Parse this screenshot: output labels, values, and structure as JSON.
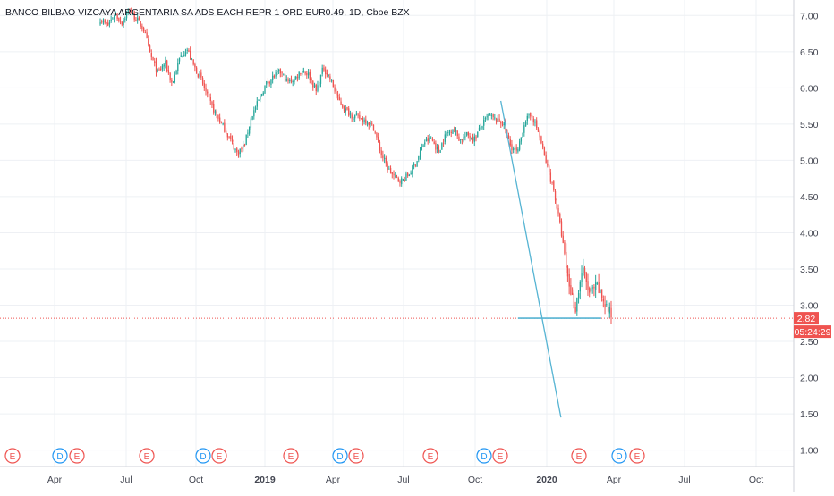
{
  "chart_data": {
    "type": "candlestick",
    "title": "BANCO BILBAO VIZCAYA ARGENTARIA SA ADS EACH REPR 1 ORD EUR0.49, 1D, Cboe BZX",
    "ylim": [
      0.75,
      7.2
    ],
    "y_ticks": [
      "7.00",
      "6.50",
      "6.00",
      "5.50",
      "5.00",
      "4.50",
      "4.00",
      "3.50",
      "3.00",
      "2.50",
      "2.00",
      "1.50",
      "1.00"
    ],
    "x_tick_labels": [
      "Apr",
      "Jul",
      "Oct",
      "2019",
      "Apr",
      "Jul",
      "Oct",
      "2020",
      "Apr",
      "Jul",
      "Oct"
    ],
    "grid": true,
    "colors": {
      "up": "#26a69a",
      "down": "#ef5350",
      "trendline": "#56b4d3",
      "price_line": "#ef5350"
    },
    "price_label": "2.82",
    "countdown_label": "05:24:29",
    "price_series": [
      6.95,
      6.85,
      7.02,
      6.9,
      7.08,
      6.95,
      6.82,
      6.45,
      6.2,
      6.35,
      6.05,
      6.4,
      6.55,
      6.3,
      6.12,
      5.85,
      5.65,
      5.48,
      5.3,
      5.1,
      5.2,
      5.6,
      5.82,
      6.05,
      6.15,
      6.22,
      6.08,
      6.12,
      6.25,
      6.18,
      5.95,
      6.28,
      6.12,
      5.85,
      5.7,
      5.62,
      5.58,
      5.55,
      5.45,
      5.1,
      4.88,
      4.75,
      4.72,
      4.82,
      5.0,
      5.25,
      5.3,
      5.12,
      5.35,
      5.45,
      5.28,
      5.35,
      5.3,
      5.48,
      5.62,
      5.55,
      5.52,
      5.2,
      5.1,
      5.55,
      5.62,
      5.35,
      4.95,
      4.6,
      4.05,
      3.35,
      2.95,
      3.5,
      3.15,
      3.25,
      3.05,
      2.85
    ],
    "trendline": [
      {
        "date": "2020-02-19",
        "value": 5.82
      },
      {
        "date": "2020-05-20",
        "value": 1.45
      }
    ],
    "support_line": [
      {
        "date": "2020-03-16",
        "value": 2.82
      },
      {
        "date": "2020-07-20",
        "value": 2.82
      }
    ],
    "events": [
      {
        "label": "E",
        "type": "earnings"
      },
      {
        "label": "D",
        "type": "dividend"
      },
      {
        "label": "E",
        "type": "earnings"
      },
      {
        "label": "E",
        "type": "earnings"
      },
      {
        "label": "D",
        "type": "dividend"
      },
      {
        "label": "E",
        "type": "earnings"
      },
      {
        "label": "E",
        "type": "earnings"
      },
      {
        "label": "D",
        "type": "dividend"
      },
      {
        "label": "E",
        "type": "earnings"
      },
      {
        "label": "E",
        "type": "earnings"
      },
      {
        "label": "D",
        "type": "dividend"
      },
      {
        "label": "E",
        "type": "earnings"
      },
      {
        "label": "E",
        "type": "earnings"
      },
      {
        "label": "D",
        "type": "dividend"
      },
      {
        "label": "E",
        "type": "earnings"
      }
    ]
  }
}
